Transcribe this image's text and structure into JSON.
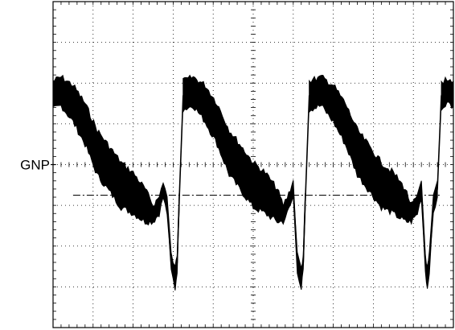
{
  "chart_data": {
    "type": "line",
    "title": "",
    "xlabel": "",
    "ylabel": "",
    "xlim": [
      0,
      10
    ],
    "ylim": [
      -4,
      4
    ],
    "grid": true,
    "grid_divisions": {
      "x": 10,
      "y": 8
    },
    "reference_label": "GNP",
    "reference_level": 0,
    "dashdot_level": -0.75,
    "colors": {
      "trace": "#000000",
      "grid": "#000000",
      "frame": "#000000"
    },
    "series": [
      {
        "x": [
          0,
          0.2,
          0.5,
          0.8,
          1.1,
          1.4,
          1.7,
          2.0,
          2.3,
          2.5,
          2.65,
          2.75,
          2.85,
          2.95,
          3.05,
          3.1,
          3.15
        ],
        "y": [
          1.7,
          1.8,
          1.5,
          1.0,
          0.3,
          -0.1,
          -0.5,
          -0.7,
          -1.0,
          -1.2,
          -1.0,
          -0.6,
          -1.0,
          -2.4,
          -2.8,
          -2.4,
          -0.9
        ],
        "band": [
          0.35,
          0.35,
          0.45,
          0.5,
          0.55,
          0.55,
          0.55,
          0.5,
          0.4,
          0.2,
          0.2,
          0.2,
          0.2,
          0.2,
          0.25,
          0.2,
          0.2
        ]
      },
      {
        "x": [
          3.25,
          3.5,
          3.8,
          4.1,
          4.4,
          4.7,
          5.0,
          5.3,
          5.6,
          5.75,
          5.85,
          6.0,
          6.1,
          6.2,
          6.25,
          6.3
        ],
        "y": [
          1.7,
          1.8,
          1.5,
          1.0,
          0.3,
          -0.1,
          -0.5,
          -0.7,
          -1.0,
          -1.2,
          -1.0,
          -0.6,
          -2.4,
          -2.8,
          -2.4,
          -0.9
        ],
        "band": [
          0.35,
          0.35,
          0.45,
          0.5,
          0.55,
          0.55,
          0.55,
          0.5,
          0.4,
          0.2,
          0.2,
          0.2,
          0.2,
          0.25,
          0.2,
          0.2
        ]
      },
      {
        "x": [
          6.4,
          6.7,
          7.0,
          7.3,
          7.6,
          7.9,
          8.2,
          8.5,
          8.8,
          8.95,
          9.1,
          9.2,
          9.3,
          9.35,
          9.4,
          9.5,
          9.6
        ],
        "y": [
          1.7,
          1.8,
          1.5,
          1.0,
          0.3,
          -0.1,
          -0.5,
          -0.7,
          -1.0,
          -1.2,
          -1.0,
          -0.6,
          -2.4,
          -2.8,
          -2.4,
          -1.0,
          -0.6
        ],
        "band": [
          0.35,
          0.35,
          0.45,
          0.5,
          0.55,
          0.55,
          0.55,
          0.5,
          0.4,
          0.2,
          0.2,
          0.2,
          0.2,
          0.25,
          0.2,
          0.2,
          0.2
        ]
      },
      {
        "x": [
          9.7,
          9.8,
          10.0
        ],
        "y": [
          1.7,
          1.8,
          1.75
        ],
        "band": [
          0.3,
          0.3,
          0.3
        ]
      }
    ]
  }
}
